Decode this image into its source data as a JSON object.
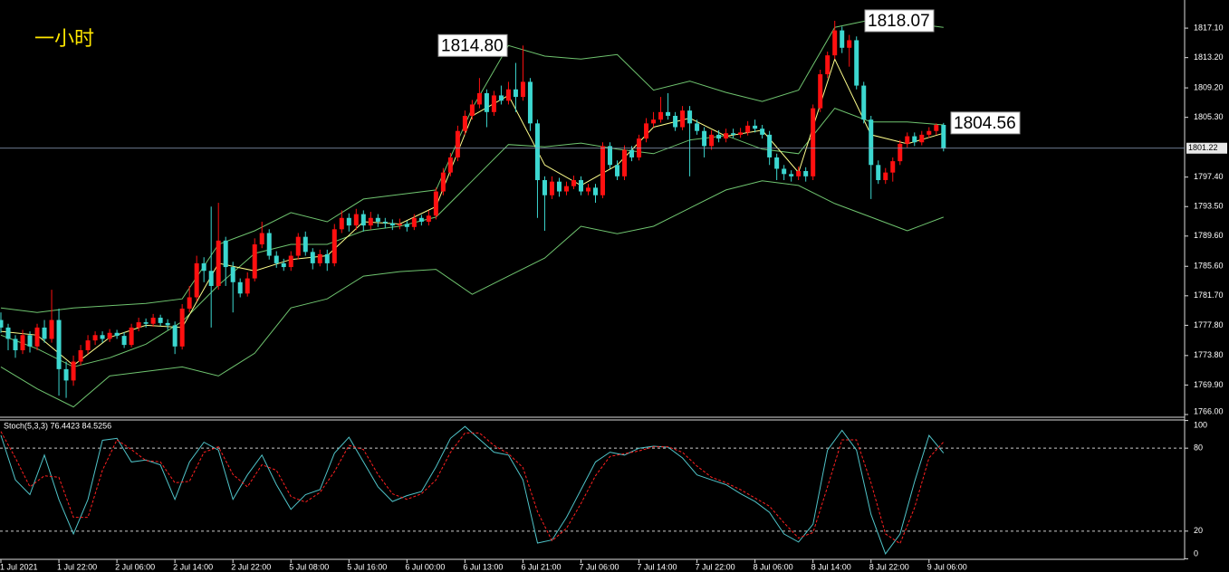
{
  "chart_data": [
    {
      "type": "candlestick",
      "title": "一小时",
      "categories": [
        "1 Jul 2021",
        null,
        null,
        null,
        null,
        null,
        null,
        null,
        "1 Jul 22:00",
        null,
        null,
        null,
        null,
        null,
        null,
        null,
        "2 Jul 06:00",
        null,
        null,
        null,
        null,
        null,
        null,
        null,
        "2 Jul 14:00",
        null,
        null,
        null,
        null,
        null,
        null,
        null,
        "2 Jul 22:00",
        null,
        null,
        null,
        null,
        null,
        null,
        null,
        "5 Jul 08:00",
        null,
        null,
        null,
        null,
        null,
        null,
        null,
        "5 Jul 16:00",
        null,
        null,
        null,
        null,
        null,
        null,
        null,
        "6 Jul 00:00",
        null,
        null,
        null,
        null,
        null,
        null,
        null,
        "6 Jul 13:00",
        null,
        null,
        null,
        null,
        null,
        null,
        null,
        "6 Jul 21:00",
        null,
        null,
        null,
        null,
        null,
        null,
        null,
        "7 Jul 06:00",
        null,
        null,
        null,
        null,
        null,
        null,
        null,
        "7 Jul 14:00",
        null,
        null,
        null,
        null,
        null,
        null,
        null,
        "7 Jul 22:00",
        null,
        null,
        null,
        null,
        null,
        null,
        null,
        "8 Jul 06:00",
        null,
        null,
        null,
        null,
        null,
        null,
        null,
        "8 Jul 14:00",
        null,
        null,
        null,
        null,
        null,
        null,
        null,
        "8 Jul 22:00",
        null,
        null,
        null,
        null,
        null,
        null,
        null,
        "9 Jul 06:00",
        null,
        null
      ],
      "open": [
        1778.5,
        1777.5,
        1776.0,
        1774.5,
        1776.5,
        1775.0,
        1777.5,
        1776.0,
        1778.5,
        1772.0,
        1770.5,
        1773.0,
        1774.5,
        1775.8,
        1776.5,
        1776.0,
        1776.8,
        1776.4,
        1775.2,
        1777.5,
        1778.2,
        1778.0,
        1778.8,
        1778.1,
        1777.8,
        1775.0,
        1780.0,
        1781.5,
        1786.0,
        1785.0,
        1783.0,
        1789.0,
        1785.5,
        1783.5,
        1782.0,
        1784.0,
        1788.5,
        1790.0,
        1787.0,
        1786.0,
        1785.5,
        1787.0,
        1789.5,
        1787.5,
        1786.0,
        1787.2,
        1786.0,
        1790.5,
        1792.0,
        1791.0,
        1792.5,
        1791.0,
        1792.0,
        1791.5,
        1791.3,
        1791.0,
        1791.2,
        1790.8,
        1792.0,
        1791.5,
        1792.3,
        1795.5,
        1798.0,
        1800.0,
        1803.5,
        1805.5,
        1807.0,
        1808.5,
        1806.0,
        1808.2,
        1807.5,
        1809.0,
        1808.0,
        1810.0,
        1804.5,
        1797.0,
        1795.0,
        1796.8,
        1795.5,
        1796.2,
        1797.0,
        1795.5,
        1796.0,
        1795.0,
        1801.5,
        1799.0,
        1797.5,
        1801.0,
        1800.0,
        1802.5,
        1804.5,
        1805.0,
        1806.0,
        1805.5,
        1804.0,
        1806.2,
        1804.5,
        1803.5,
        1801.5,
        1803.0,
        1802.5,
        1803.2,
        1803.0,
        1803.3,
        1804.2,
        1803.8,
        1803.0,
        1800.0,
        1798.5,
        1797.8,
        1797.5,
        1798.2,
        1797.5,
        1806.5,
        1811.0,
        1813.5,
        1816.8,
        1814.5,
        1815.5,
        1809.5,
        1805.0,
        1799.0,
        1797.0,
        1798.0,
        1799.5,
        1801.8,
        1802.8,
        1802.0,
        1803.0,
        1803.5,
        1804.3
      ],
      "high": [
        1779.5,
        1778.0,
        1776.5,
        1777.2,
        1777.0,
        1778.0,
        1778.5,
        1782.5,
        1780.0,
        1773.0,
        1773.8,
        1775.2,
        1776.5,
        1777.0,
        1777.0,
        1777.3,
        1777.2,
        1776.9,
        1778.0,
        1778.8,
        1778.7,
        1779.3,
        1779.2,
        1778.6,
        1778.3,
        1780.6,
        1783.0,
        1787.0,
        1786.8,
        1793.5,
        1794.0,
        1789.5,
        1786.2,
        1784.0,
        1784.8,
        1789.3,
        1791.5,
        1790.5,
        1787.6,
        1786.6,
        1787.6,
        1790.0,
        1790.2,
        1788.0,
        1787.8,
        1787.8,
        1791.2,
        1793.0,
        1792.6,
        1793.2,
        1793.0,
        1792.8,
        1792.5,
        1792.0,
        1791.8,
        1791.9,
        1791.6,
        1792.5,
        1792.4,
        1793.0,
        1796.0,
        1798.6,
        1800.6,
        1804.2,
        1806.2,
        1807.6,
        1810.5,
        1809.0,
        1808.8,
        1809.5,
        1810.0,
        1812.5,
        1814.8,
        1810.5,
        1805.0,
        1797.5,
        1797.5,
        1797.3,
        1796.8,
        1797.6,
        1797.5,
        1796.5,
        1796.5,
        1802.0,
        1802.0,
        1799.6,
        1801.6,
        1801.5,
        1803.0,
        1805.2,
        1806.0,
        1808.0,
        1808.5,
        1806.0,
        1806.8,
        1806.8,
        1805.0,
        1804.0,
        1803.6,
        1803.6,
        1803.8,
        1803.8,
        1803.9,
        1804.8,
        1805.0,
        1804.3,
        1803.5,
        1800.5,
        1799.0,
        1798.3,
        1798.8,
        1798.7,
        1807.0,
        1811.6,
        1814.0,
        1818.07,
        1817.3,
        1816.2,
        1816.0,
        1810.0,
        1805.5,
        1799.6,
        1798.6,
        1800.0,
        1802.3,
        1803.3,
        1803.3,
        1803.5,
        1804.0,
        1804.5,
        1804.56
      ],
      "low": [
        1776.8,
        1774.5,
        1773.5,
        1774.0,
        1774.2,
        1774.5,
        1775.5,
        1775.5,
        1768.5,
        1768.2,
        1769.8,
        1772.5,
        1774.0,
        1775.2,
        1775.5,
        1775.6,
        1776.0,
        1774.8,
        1774.9,
        1777.0,
        1777.5,
        1777.6,
        1777.7,
        1777.2,
        1774.0,
        1774.6,
        1779.5,
        1781.0,
        1783.5,
        1777.5,
        1782.5,
        1783.0,
        1779.5,
        1781.5,
        1781.6,
        1783.6,
        1788.0,
        1786.5,
        1785.4,
        1785.0,
        1785.0,
        1786.5,
        1787.0,
        1785.2,
        1785.6,
        1785.0,
        1785.6,
        1790.0,
        1790.2,
        1790.4,
        1790.2,
        1790.5,
        1790.8,
        1790.6,
        1790.4,
        1790.5,
        1790.2,
        1790.4,
        1791.0,
        1791.0,
        1791.8,
        1795.0,
        1797.5,
        1799.5,
        1803.0,
        1805.0,
        1806.5,
        1804.0,
        1805.5,
        1807.0,
        1807.0,
        1806.0,
        1807.5,
        1803.5,
        1792.0,
        1790.3,
        1794.5,
        1794.8,
        1795.0,
        1795.8,
        1795.0,
        1795.0,
        1794.0,
        1794.6,
        1798.5,
        1797.0,
        1797.0,
        1799.5,
        1799.6,
        1802.0,
        1804.0,
        1804.6,
        1805.0,
        1803.5,
        1803.6,
        1797.5,
        1803.0,
        1800.0,
        1801.0,
        1802.0,
        1802.0,
        1802.6,
        1802.6,
        1802.9,
        1803.3,
        1802.5,
        1799.0,
        1797.0,
        1797.0,
        1796.8,
        1797.0,
        1796.8,
        1797.0,
        1806.0,
        1810.5,
        1813.0,
        1813.8,
        1812.0,
        1809.0,
        1804.5,
        1794.5,
        1796.5,
        1796.5,
        1796.8,
        1799.0,
        1801.3,
        1801.5,
        1801.6,
        1802.6,
        1803.0,
        1800.8
      ],
      "close": [
        1777.5,
        1776.0,
        1774.5,
        1776.5,
        1775.0,
        1777.5,
        1776.0,
        1778.5,
        1772.0,
        1770.5,
        1773.0,
        1774.5,
        1775.8,
        1776.5,
        1776.0,
        1776.8,
        1776.4,
        1775.2,
        1777.5,
        1778.2,
        1778.0,
        1778.8,
        1778.1,
        1777.8,
        1775.0,
        1780.0,
        1781.5,
        1786.0,
        1785.0,
        1783.0,
        1789.0,
        1785.5,
        1783.5,
        1782.0,
        1784.0,
        1788.5,
        1790.0,
        1787.0,
        1786.0,
        1785.5,
        1787.0,
        1789.5,
        1787.5,
        1786.0,
        1787.2,
        1786.0,
        1790.5,
        1792.0,
        1791.0,
        1792.5,
        1791.0,
        1792.0,
        1791.5,
        1791.3,
        1791.0,
        1791.2,
        1790.8,
        1792.0,
        1791.5,
        1792.3,
        1795.5,
        1798.0,
        1800.0,
        1803.5,
        1805.5,
        1807.0,
        1808.5,
        1806.0,
        1808.2,
        1807.5,
        1809.0,
        1808.0,
        1810.0,
        1804.5,
        1797.0,
        1795.0,
        1796.8,
        1795.5,
        1796.2,
        1797.0,
        1795.5,
        1796.0,
        1795.0,
        1801.5,
        1799.0,
        1797.5,
        1801.0,
        1800.0,
        1802.5,
        1804.5,
        1805.0,
        1806.0,
        1805.5,
        1804.0,
        1806.2,
        1804.5,
        1803.5,
        1801.5,
        1803.0,
        1802.5,
        1803.2,
        1803.0,
        1803.3,
        1804.2,
        1803.8,
        1803.0,
        1800.0,
        1798.5,
        1797.8,
        1797.5,
        1798.2,
        1797.5,
        1806.5,
        1811.0,
        1813.5,
        1816.8,
        1814.5,
        1815.5,
        1809.5,
        1805.0,
        1799.0,
        1797.0,
        1798.0,
        1799.5,
        1801.8,
        1802.8,
        1802.0,
        1803.0,
        1803.5,
        1804.3,
        1801.22
      ],
      "up_color": "#ff1010",
      "down_color": "#3cd7d0",
      "series": [
        {
          "color": "#6fc46f",
          "x": [
            0,
            5,
            10,
            15,
            20,
            25,
            30,
            35,
            40,
            45,
            50,
            55,
            60,
            65,
            70,
            75,
            80,
            85,
            90,
            95,
            100,
            105,
            110,
            115,
            120,
            125,
            130
          ],
          "values": [
            1780.1,
            1779.5,
            1780.1,
            1780.4,
            1780.7,
            1781.3,
            1788.5,
            1790.3,
            1792.7,
            1791.5,
            1794.5,
            1795.1,
            1795.7,
            1806.5,
            1814.8,
            1813.4,
            1813.0,
            1813.6,
            1808.9,
            1810.1,
            1808.6,
            1807.4,
            1808.9,
            1817.2,
            1818.2,
            1817.8,
            1817.2
          ]
        },
        {
          "color": "#6fc46f",
          "x": [
            0,
            5,
            10,
            15,
            20,
            25,
            30,
            35,
            40,
            45,
            50,
            55,
            60,
            65,
            70,
            75,
            80,
            85,
            90,
            95,
            100,
            105,
            110,
            115,
            120,
            125,
            130
          ],
          "values": [
            1776.5,
            1774.7,
            1772.3,
            1773.5,
            1775.3,
            1778.3,
            1783.1,
            1787.3,
            1788.5,
            1788.5,
            1790.3,
            1790.9,
            1792.1,
            1796.9,
            1801.7,
            1801.4,
            1801.9,
            1801.1,
            1800.5,
            1802.3,
            1802.9,
            1801.1,
            1800.5,
            1806.5,
            1804.7,
            1804.7,
            1804.3
          ]
        },
        {
          "color": "#6fc46f",
          "x": [
            0,
            5,
            10,
            15,
            20,
            25,
            30,
            35,
            40,
            45,
            50,
            55,
            60,
            65,
            70,
            75,
            80,
            85,
            90,
            95,
            100,
            105,
            110,
            115,
            120,
            125,
            130
          ],
          "values": [
            1772.3,
            1769.4,
            1767.0,
            1771.1,
            1771.7,
            1772.3,
            1771.1,
            1774.1,
            1780.1,
            1781.3,
            1784.3,
            1784.9,
            1785.2,
            1781.9,
            1784.3,
            1786.7,
            1790.9,
            1789.9,
            1790.9,
            1793.3,
            1795.7,
            1796.9,
            1796.3,
            1793.9,
            1792.1,
            1790.3,
            1792.1
          ]
        },
        {
          "color": "#ffff8c",
          "x": [
            0,
            5,
            10,
            15,
            20,
            25,
            30,
            35,
            40,
            45,
            50,
            55,
            60,
            65,
            70,
            75,
            80,
            85,
            90,
            95,
            100,
            105,
            110,
            115,
            120,
            125,
            130
          ],
          "values": [
            1777.0,
            1776.5,
            1772.5,
            1776.2,
            1777.8,
            1777.5,
            1786.0,
            1785.0,
            1786.5,
            1787.0,
            1791.5,
            1791.2,
            1793.5,
            1805.5,
            1808.2,
            1799.0,
            1796.3,
            1799.0,
            1804.0,
            1805.2,
            1802.8,
            1803.6,
            1798.0,
            1813.0,
            1803.0,
            1801.8,
            1803.2
          ]
        }
      ],
      "xlim": [
        -0.125,
        163.25
      ],
      "ylim": [
        1765.64,
        1820.82
      ],
      "yticks": [
        {
          "value": 1817.1,
          "label": "1817.10"
        },
        {
          "value": 1813.2,
          "label": "1813.20"
        },
        {
          "value": 1809.2,
          "label": "1809.20"
        },
        {
          "value": 1805.3,
          "label": "1805.30"
        },
        {
          "value": 1797.4,
          "label": "1797.40"
        },
        {
          "value": 1793.5,
          "label": "1793.50"
        },
        {
          "value": 1789.6,
          "label": "1789.60"
        },
        {
          "value": 1785.6,
          "label": "1785.60"
        },
        {
          "value": 1781.7,
          "label": "1781.70"
        },
        {
          "value": 1777.8,
          "label": "1777.80"
        },
        {
          "value": 1773.8,
          "label": "1773.80"
        },
        {
          "value": 1769.9,
          "label": "1769.90"
        },
        {
          "value": 1766,
          "label": "1766.00"
        }
      ],
      "current_price": 1801.22,
      "annotations": [
        {
          "value": 1814.8,
          "label": "1814.80"
        },
        1818.07,
        1804.56
      ]
    },
    {
      "type": "line",
      "subtitle": "Stoch(5,3,3) 76.4423 84.5256",
      "x": [
        0,
        2,
        4,
        6,
        8,
        10,
        12,
        14,
        16,
        18,
        20,
        22,
        24,
        26,
        28,
        30,
        32,
        34,
        36,
        38,
        40,
        42,
        44,
        46,
        48,
        50,
        52,
        54,
        56,
        58,
        60,
        62,
        64,
        66,
        68,
        70,
        72,
        74,
        76,
        78,
        80,
        82,
        84,
        86,
        88,
        90,
        92,
        94,
        96,
        98,
        100,
        102,
        104,
        106,
        108,
        110,
        112,
        114,
        116,
        118,
        120,
        122,
        124,
        126,
        128,
        130
      ],
      "series": [
        {
          "color": "#4fc3c8",
          "values": [
            89.3,
            57.1,
            46.4,
            75,
            42.9,
            17.9,
            42.9,
            85.7,
            87.1,
            70,
            71.4,
            67.9,
            42.9,
            70,
            84.3,
            78.6,
            42.9,
            60.7,
            75,
            53.6,
            35.7,
            46.4,
            50,
            76.4,
            87.9,
            70,
            52.1,
            41.4,
            45.7,
            48.6,
            66.4,
            87.1,
            95.7,
            86.4,
            77.1,
            75,
            57.1,
            11.4,
            13.6,
            30,
            50,
            70,
            77.1,
            75,
            80,
            81.4,
            80.7,
            72.9,
            60.7,
            57.1,
            53.6,
            47.1,
            41.4,
            33.6,
            17.9,
            12.1,
            25,
            78.6,
            92.9,
            78.6,
            32.1,
            3.6,
            17.9,
            55.7,
            89.3,
            76.4423
          ]
        },
        {
          "color": "#ff2020",
          "dashed": true,
          "values": [
            92,
            73,
            52,
            60,
            59,
            30,
            30,
            64,
            86,
            79,
            71,
            70,
            55,
            56,
            77,
            81,
            61,
            52,
            68,
            64,
            45,
            41,
            48,
            63,
            82,
            79,
            61,
            47,
            43,
            47,
            57,
            77,
            91,
            91,
            82,
            76,
            66,
            34,
            13,
            22,
            40,
            60,
            74,
            76,
            78,
            81,
            81,
            77,
            67,
            59,
            55,
            50,
            44,
            38,
            26,
            15,
            19,
            52,
            86,
            86,
            55,
            18,
            11,
            37,
            73,
            84.5256
          ]
        }
      ],
      "xlim": [
        -0.125,
        163.25
      ],
      "ylim": [
        -0.4,
        100.4
      ],
      "yticks": [
        100,
        80,
        20,
        0
      ]
    }
  ]
}
